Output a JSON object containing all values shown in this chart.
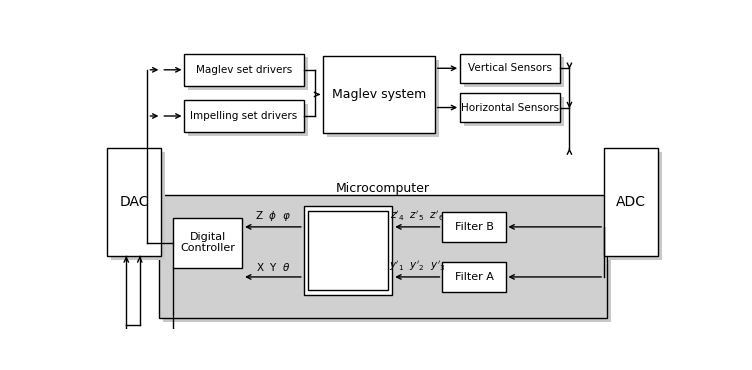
{
  "figsize": [
    7.52,
    3.7
  ],
  "dpi": 100,
  "bg": "#ffffff",
  "shadow": "#c8c8c8",
  "micro_fill": "#d0d0d0",
  "box_fill": "#ffffff",
  "edge": "#000000",
  "labels": {
    "drv1": "Maglev set drivers",
    "drv2": "Impelling set drivers",
    "maglev": "Maglev system",
    "vsens": "Vertical Sensors",
    "hsens": "Horizontal Sensors",
    "dac": "DAC",
    "adc": "ADC",
    "micro": "Microcomputer",
    "filterb": "Filter B",
    "filtera": "Filter A",
    "ctrl": "Digital\nController"
  },
  "fs": {
    "small": 7.5,
    "mid": 8,
    "large": 9,
    "xlarge": 10,
    "micro": 9
  }
}
